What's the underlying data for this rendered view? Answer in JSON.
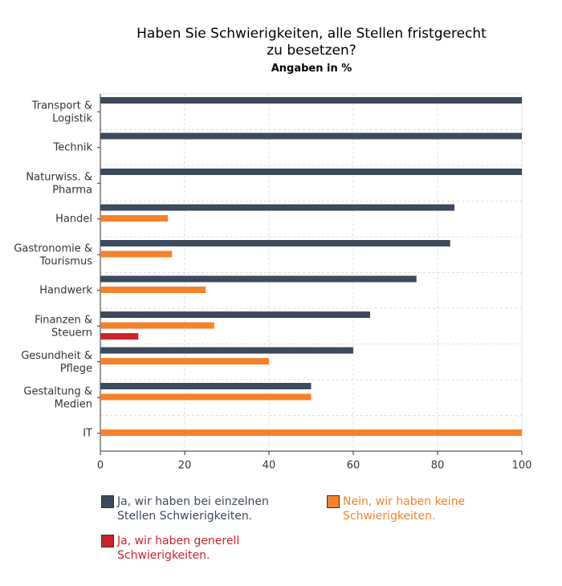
{
  "chart_data": {
    "type": "bar",
    "orientation": "horizontal",
    "title": "Haben Sie Schwierigkeiten, alle Stellen fristgerecht zu besetzen?",
    "subtitle": "Angaben in %",
    "categories": [
      "Transport & Logistik",
      "Technik",
      "Naturwiss. & Pharma",
      "Handel",
      "Gastronomie & Tourismus",
      "Handwerk",
      "Finanzen & Steuern",
      "Gesundheit & Pflege",
      "Gestaltung & Medien",
      "IT"
    ],
    "series": [
      {
        "name": "Ja, wir haben bei einzelnen Stellen Schwierigkeiten.",
        "color": "#3d4a5c",
        "values": [
          100,
          100,
          100,
          84,
          83,
          75,
          64,
          60,
          50,
          null
        ]
      },
      {
        "name": "Nein, wir haben keine Schwierigkeiten.",
        "color": "#f5822a",
        "values": [
          null,
          null,
          null,
          16,
          17,
          25,
          27,
          40,
          50,
          100
        ]
      },
      {
        "name": "Ja, wir haben generell Schwierigkeiten.",
        "color": "#cc2229",
        "values": [
          null,
          null,
          null,
          null,
          null,
          null,
          9,
          null,
          null,
          null
        ]
      }
    ],
    "xlim": [
      0,
      100
    ],
    "xticks": [
      0,
      20,
      40,
      60,
      80,
      100
    ],
    "grid": true
  }
}
